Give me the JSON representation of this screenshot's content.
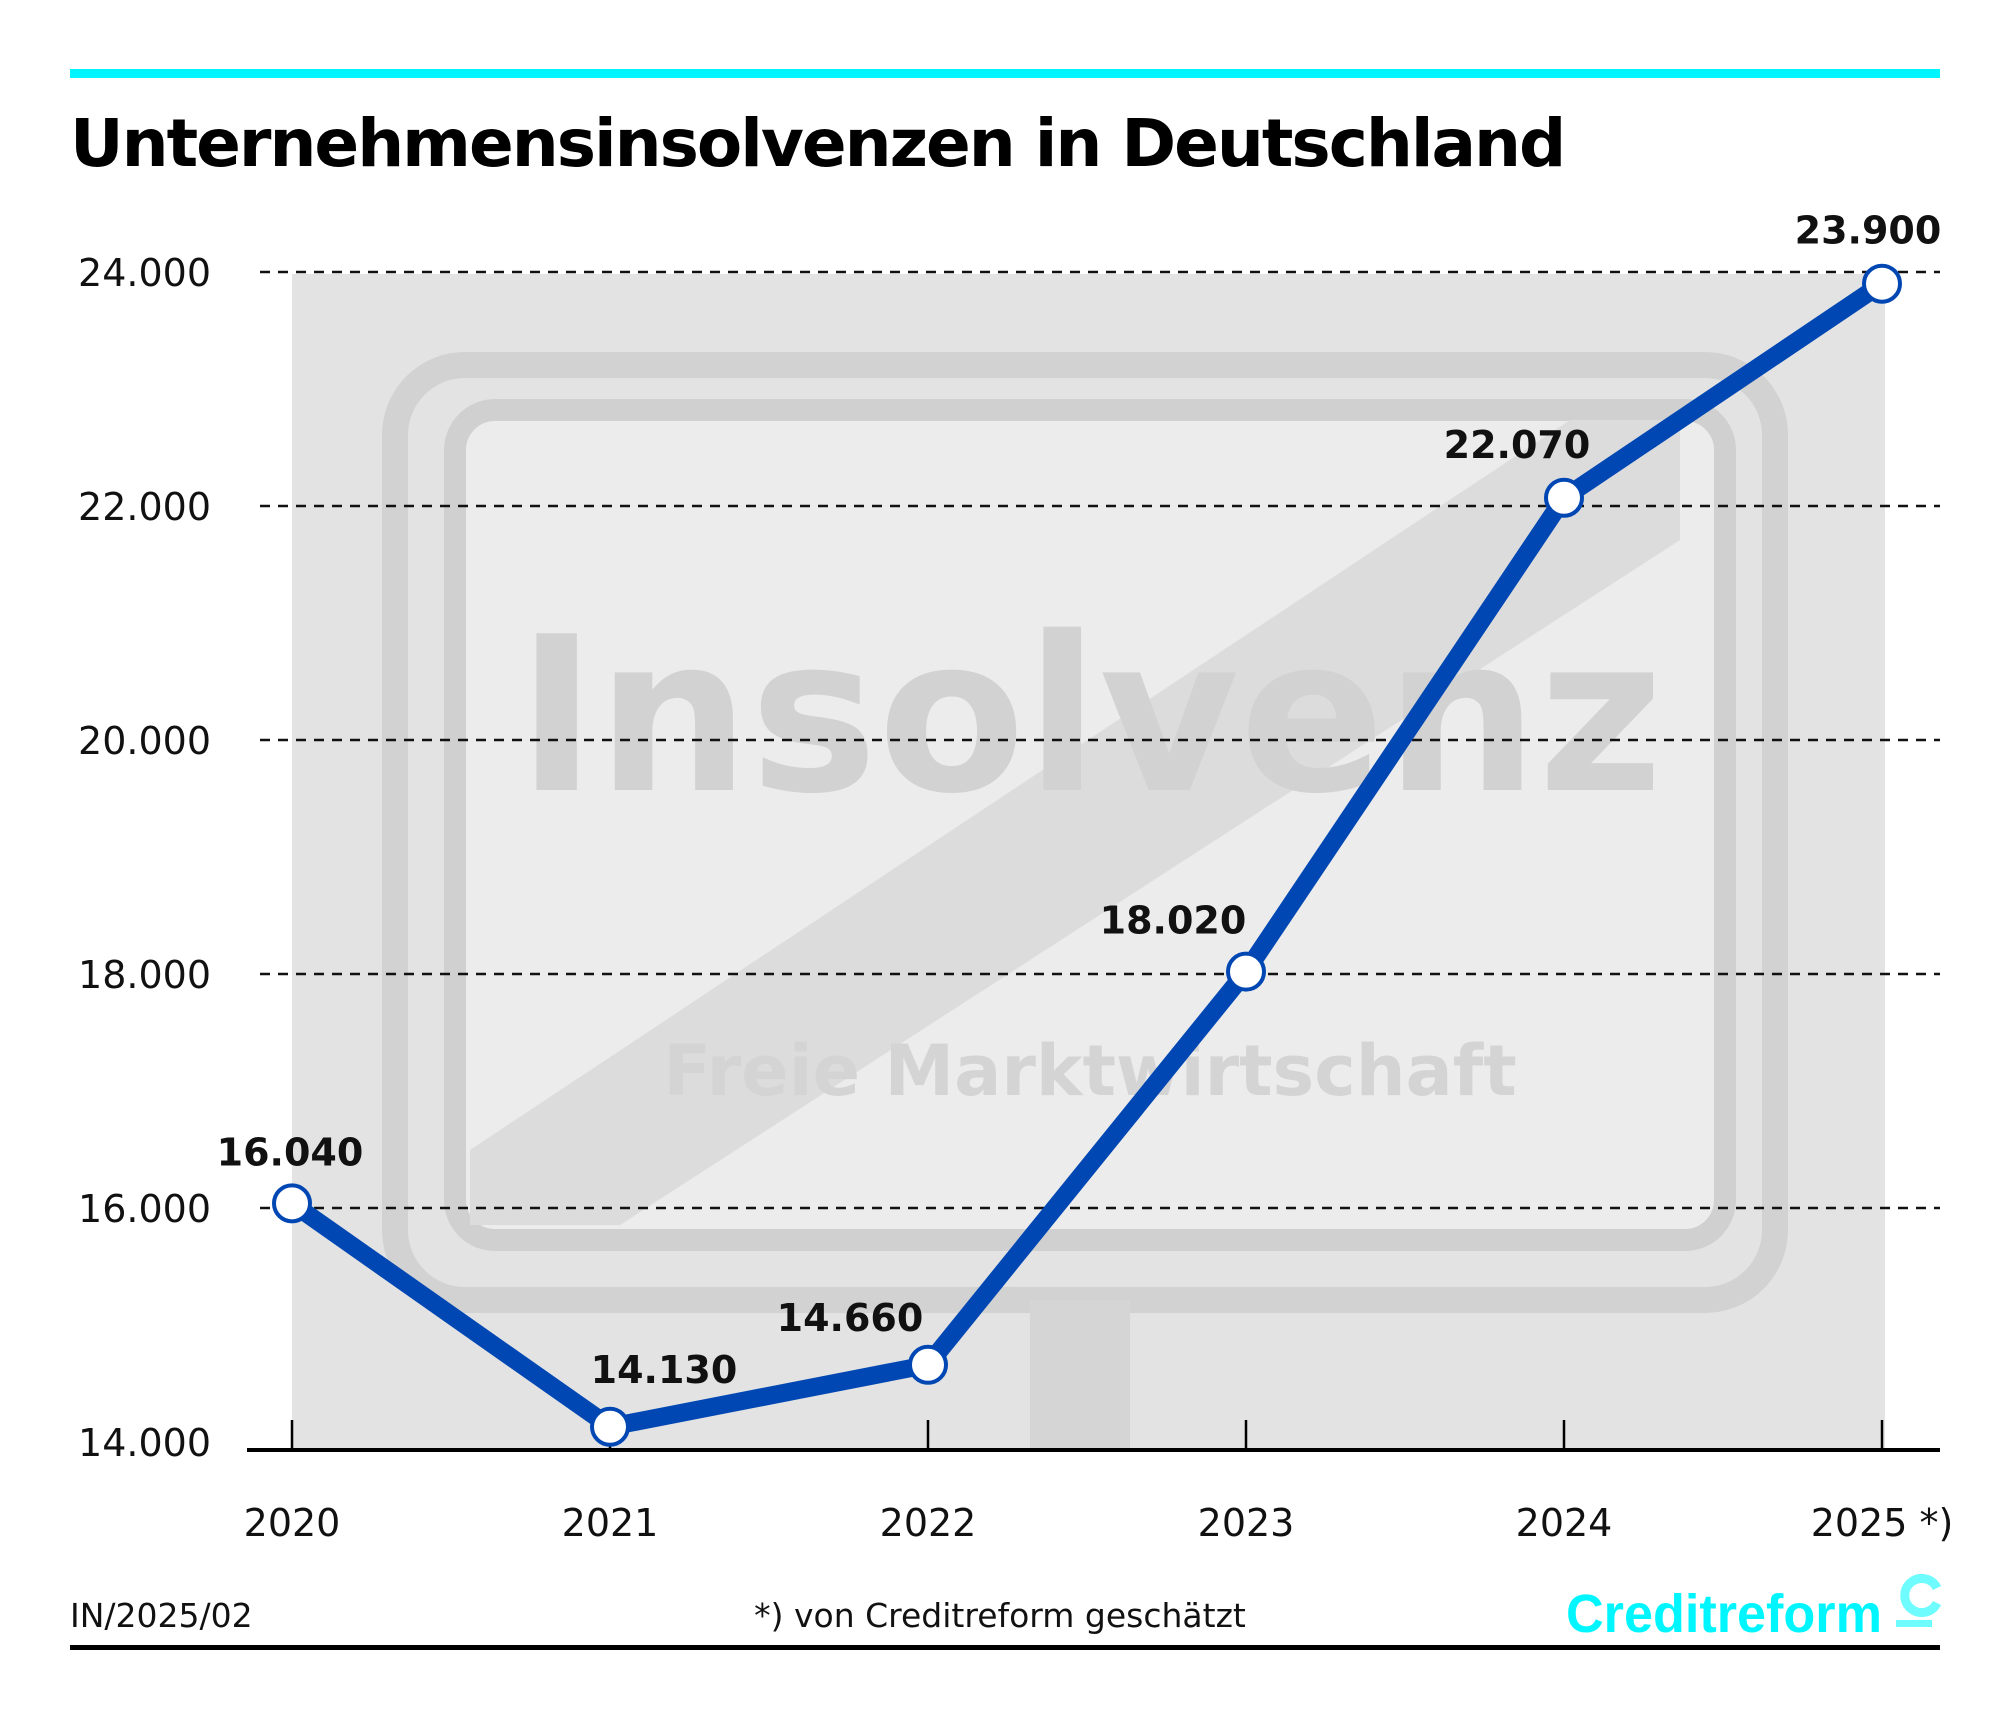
{
  "colors": {
    "accent": "#00F6FF",
    "line": "#0047B3",
    "marker_fill": "#FFFFFF"
  },
  "background_photo": {
    "sign_text": "Insolvenz",
    "sign_subtext": "Freie Marktwirtschaft"
  },
  "footer": {
    "code": "IN/2025/02",
    "note": "*) von Creditreform geschätzt",
    "logo": "Creditreform"
  },
  "chart_data": {
    "type": "line",
    "title": "Unternehmensinsolvenzen in Deutschland",
    "xlabel": "",
    "ylabel": "",
    "categories": [
      "2020",
      "2021",
      "2022",
      "2023",
      "2024",
      "2025 *)"
    ],
    "series": [
      {
        "name": "Unternehmensinsolvenzen",
        "values": [
          16040,
          14130,
          14660,
          18020,
          22070,
          23900
        ]
      }
    ],
    "data_labels": [
      "16.040",
      "14.130",
      "14.660",
      "18.020",
      "22.070",
      "23.900"
    ],
    "yticks": [
      14000,
      16000,
      18000,
      20000,
      22000,
      24000
    ],
    "ytick_labels": [
      "14.000",
      "16.000",
      "18.000",
      "20.000",
      "22.000",
      "24.000"
    ],
    "ylim": [
      14000,
      24000
    ],
    "grid": "horizontal dashed",
    "legend": "none"
  }
}
